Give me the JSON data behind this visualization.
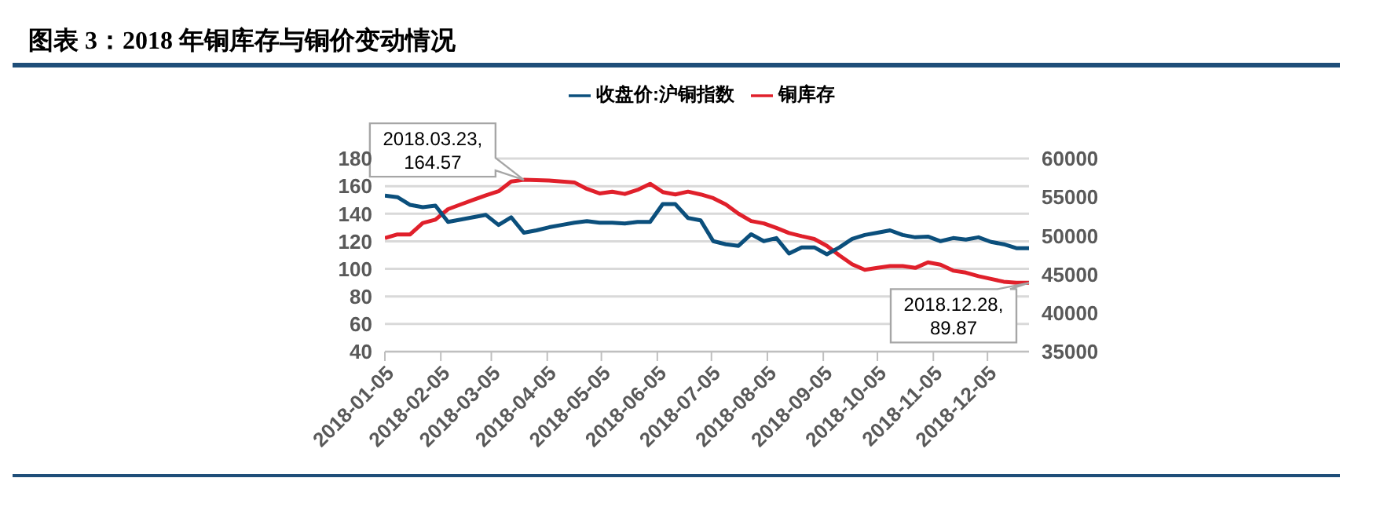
{
  "chart_data": {
    "type": "line",
    "title": "图表 3：2018 年铜库存与铜价变动情况",
    "x": [
      "2018-01-05",
      "2018-01-12",
      "2018-01-19",
      "2018-01-26",
      "2018-02-02",
      "2018-02-09",
      "2018-02-16",
      "2018-02-23",
      "2018-03-02",
      "2018-03-09",
      "2018-03-16",
      "2018-03-23",
      "2018-03-30",
      "2018-04-06",
      "2018-04-13",
      "2018-04-20",
      "2018-04-27",
      "2018-05-04",
      "2018-05-11",
      "2018-05-18",
      "2018-05-25",
      "2018-06-01",
      "2018-06-08",
      "2018-06-15",
      "2018-06-22",
      "2018-06-29",
      "2018-07-06",
      "2018-07-13",
      "2018-07-20",
      "2018-07-27",
      "2018-08-03",
      "2018-08-10",
      "2018-08-17",
      "2018-08-24",
      "2018-08-31",
      "2018-09-07",
      "2018-09-14",
      "2018-09-21",
      "2018-09-28",
      "2018-10-05",
      "2018-10-12",
      "2018-10-19",
      "2018-10-26",
      "2018-11-02",
      "2018-11-09",
      "2018-11-16",
      "2018-11-23",
      "2018-11-30",
      "2018-12-07",
      "2018-12-14",
      "2018-12-21",
      "2018-12-28"
    ],
    "series": [
      {
        "name": "铜库存",
        "color": "#e0202b",
        "values": [
          122.3,
          125,
          125,
          133.3,
          135.7,
          143.3,
          146.7,
          150,
          153.3,
          156.3,
          163.3,
          164.57,
          164.3,
          164,
          163.3,
          162.7,
          158,
          154.7,
          156,
          154.3,
          157.3,
          161.7,
          155.7,
          154,
          156,
          154,
          151.3,
          146.7,
          140,
          134.7,
          133,
          129.7,
          126,
          123.7,
          121.7,
          116.7,
          109.7,
          103.3,
          99.3,
          100.7,
          102,
          102,
          100.7,
          104.7,
          103,
          98.7,
          97.3,
          94.7,
          92.7,
          90.7,
          90,
          89.87
        ]
      },
      {
        "name": "收盘价:沪铜指数",
        "color": "#0b4f7c",
        "axis": "y2",
        "values": [
          55200,
          55000,
          54000,
          53700,
          53900,
          51800,
          52100,
          52400,
          52700,
          51400,
          52400,
          50400,
          50700,
          51100,
          51400,
          51700,
          51900,
          51700,
          51700,
          51600,
          51800,
          51800,
          54100,
          54100,
          52300,
          52000,
          49300,
          48900,
          48700,
          50200,
          49300,
          49700,
          47700,
          48500,
          48500,
          47600,
          48500,
          49600,
          50100,
          50400,
          50700,
          50100,
          49800,
          49900,
          49300,
          49700,
          49500,
          49800,
          49200,
          48900,
          48400,
          48400
        ]
      }
    ],
    "xlim": [
      "2018-01-05",
      "2018-12-28"
    ],
    "xticks": [
      "2018-01-05",
      "2018-02-05",
      "2018-03-05",
      "2018-04-05",
      "2018-05-05",
      "2018-06-05",
      "2018-07-05",
      "2018-08-05",
      "2018-09-05",
      "2018-10-05",
      "2018-11-05",
      "2018-12-05"
    ],
    "ylim": [
      40,
      180
    ],
    "yticks": [
      40,
      60,
      80,
      100,
      120,
      140,
      160,
      180
    ],
    "y2lim": [
      35000,
      60000
    ],
    "y2ticks": [
      35000,
      40000,
      45000,
      50000,
      55000,
      60000
    ],
    "grid": "y",
    "legend": "top",
    "marker": "none",
    "line_style": "solid",
    "annotations": [
      {
        "text": "2018.03.23,\n164.57",
        "x": "2018-03-23",
        "y": 164.57
      },
      {
        "text": "2018.12.28,\n89.87",
        "x": "2018-12-28",
        "y": 89.87
      }
    ]
  }
}
